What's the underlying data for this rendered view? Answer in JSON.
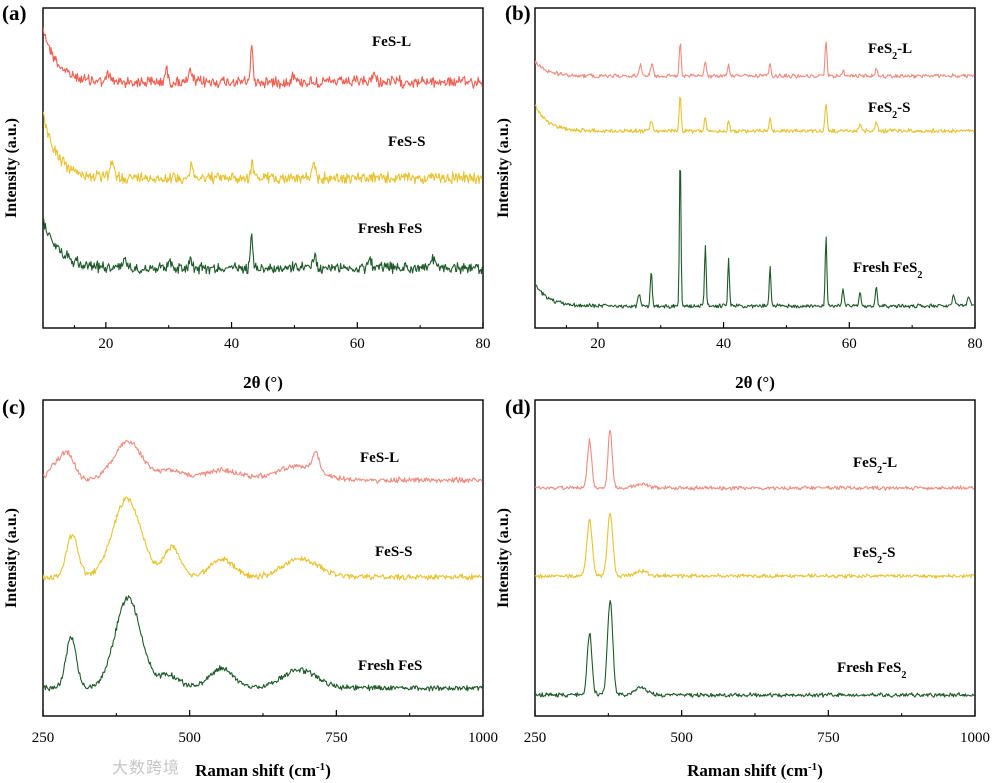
{
  "watermark": "大数跨境",
  "chart_data": [
    {
      "panel": "(a)",
      "type": "line",
      "xlabel": "2θ (°)",
      "ylabel": "Intensity (a.u.)",
      "xlim": [
        10,
        80
      ],
      "xticks": [
        20,
        40,
        60,
        80
      ],
      "noise": 4.5,
      "series": [
        {
          "name": "FeS-L",
          "color": "#f05e50",
          "base": 82,
          "edge": {
            "height": 55,
            "decay": 2.2
          },
          "peaks": [
            [
              20.5,
              7,
              0.3
            ],
            [
              29.6,
              12,
              0.25
            ],
            [
              33.5,
              10,
              0.25
            ],
            [
              43.2,
              38,
              0.18
            ],
            [
              49.8,
              8,
              0.25
            ],
            [
              62.6,
              8,
              0.3
            ]
          ]
        },
        {
          "name": "FeS-S",
          "color": "#e8c232",
          "base": 178,
          "edge": {
            "height": 65,
            "decay": 2.2
          },
          "peaks": [
            [
              21,
              12,
              0.4
            ],
            [
              33.6,
              10,
              0.3
            ],
            [
              43.3,
              16,
              0.2
            ],
            [
              53.1,
              12,
              0.25
            ]
          ]
        },
        {
          "name": "Fresh FeS",
          "color": "#1f5a2a",
          "base": 268,
          "edge": {
            "height": 48,
            "decay": 2.6
          },
          "peaks": [
            [
              23,
              9,
              0.3
            ],
            [
              30.1,
              8,
              0.3
            ],
            [
              33.5,
              9,
              0.3
            ],
            [
              43.2,
              38,
              0.18
            ],
            [
              53.2,
              12,
              0.25
            ],
            [
              62,
              9,
              0.3
            ],
            [
              72,
              9,
              0.3
            ]
          ]
        }
      ]
    },
    {
      "panel": "(b)",
      "type": "line",
      "xlabel": "2θ (°)",
      "ylabel": "Intensity (a.u.)",
      "xlim": [
        10,
        80
      ],
      "xticks": [
        20,
        40,
        60,
        80
      ],
      "noise": 1.6,
      "series": [
        {
          "name": "FeS2-L",
          "label_base": "FeS",
          "label_sub": "2",
          "label_suffix": "-L",
          "color": "#ef8c80",
          "base": 76,
          "edge": {
            "height": 14,
            "decay": 2.0
          },
          "peaks": [
            [
              26.8,
              12,
              0.2
            ],
            [
              28.6,
              13,
              0.2
            ],
            [
              33.1,
              34,
              0.15
            ],
            [
              37.1,
              16,
              0.15
            ],
            [
              40.8,
              12,
              0.15
            ],
            [
              47.4,
              12,
              0.15
            ],
            [
              56.3,
              34,
              0.15
            ],
            [
              59,
              5,
              0.2
            ],
            [
              64.3,
              6,
              0.2
            ]
          ]
        },
        {
          "name": "FeS2-S",
          "label_base": "FeS",
          "label_sub": "2",
          "label_suffix": "-S",
          "color": "#e8c232",
          "base": 131,
          "edge": {
            "height": 26,
            "decay": 2.0
          },
          "peaks": [
            [
              28.5,
              10,
              0.2
            ],
            [
              33.1,
              36,
              0.15
            ],
            [
              37.1,
              14,
              0.15
            ],
            [
              40.8,
              10,
              0.15
            ],
            [
              47.4,
              13,
              0.15
            ],
            [
              56.3,
              28,
              0.15
            ],
            [
              61.7,
              7,
              0.2
            ],
            [
              64.3,
              10,
              0.2
            ]
          ]
        },
        {
          "name": "Fresh FeS2",
          "label_base": "Fresh FeS",
          "label_sub": "2",
          "label_suffix": "",
          "color": "#1f5a2a",
          "base": 306,
          "edge": {
            "height": 22,
            "decay": 2.0
          },
          "peaks": [
            [
              26.6,
              12,
              0.2
            ],
            [
              28.5,
              34,
              0.15
            ],
            [
              33.1,
              154,
              0.12
            ],
            [
              37.1,
              62,
              0.13
            ],
            [
              40.8,
              46,
              0.13
            ],
            [
              47.4,
              40,
              0.13
            ],
            [
              56.3,
              70,
              0.13
            ],
            [
              59,
              18,
              0.15
            ],
            [
              61.7,
              14,
              0.15
            ],
            [
              64.3,
              20,
              0.15
            ],
            [
              76.6,
              10,
              0.2
            ],
            [
              79,
              10,
              0.2
            ]
          ]
        }
      ]
    },
    {
      "panel": "(c)",
      "type": "line",
      "xlabel": "Raman shift (cm⁻¹)",
      "xlabel_base": "Raman shift (cm",
      "xlabel_sup": "-1",
      "xlabel_end": ")",
      "ylabel": "Intensity (a.u.)",
      "xlim": [
        250,
        1000
      ],
      "xticks": [
        250,
        500,
        750,
        1000
      ],
      "noise": 2.2,
      "series": [
        {
          "name": "FeS-L",
          "color": "#ef8c80",
          "base": 480,
          "peaks": [
            [
              270,
              12,
              12
            ],
            [
              292,
              25,
              12
            ],
            [
              395,
              38,
              24
            ],
            [
              470,
              10,
              20
            ],
            [
              555,
              10,
              30
            ],
            [
              685,
              14,
              35
            ],
            [
              715,
              18,
              6
            ]
          ]
        },
        {
          "name": "FeS-S",
          "color": "#e8c232",
          "base": 577,
          "peaks": [
            [
              300,
              42,
              10
            ],
            [
              393,
              78,
              24
            ],
            [
              470,
              30,
              14
            ],
            [
              555,
              18,
              20
            ],
            [
              690,
              18,
              30
            ]
          ]
        },
        {
          "name": "Fresh FeS",
          "color": "#1f5a2a",
          "base": 688,
          "peaks": [
            [
              298,
              50,
              9
            ],
            [
              395,
              90,
              22
            ],
            [
              465,
              12,
              18
            ],
            [
              555,
              20,
              20
            ],
            [
              688,
              18,
              30
            ]
          ]
        }
      ]
    },
    {
      "panel": "(d)",
      "type": "line",
      "xlabel": "Raman shift (cm⁻¹)",
      "xlabel_base": "Raman shift (cm",
      "xlabel_sup": "-1",
      "xlabel_end": ")",
      "ylabel": "Intensity (a.u.)",
      "xlim": [
        250,
        1000
      ],
      "xticks": [
        250,
        500,
        750,
        1000
      ],
      "noise": 1.6,
      "series": [
        {
          "name": "FeS2-L",
          "label_base": "FeS",
          "label_sub": "2",
          "label_suffix": "-L",
          "color": "#ef8c80",
          "base": 488,
          "peaks": [
            [
              343,
              48,
              3.5
            ],
            [
              378,
              58,
              3.5
            ],
            [
              430,
              4,
              10
            ]
          ]
        },
        {
          "name": "FeS2-S",
          "label_base": "FeS",
          "label_sub": "2",
          "label_suffix": "-S",
          "color": "#e8c232",
          "base": 576,
          "peaks": [
            [
              343,
              56,
              4.5
            ],
            [
              378,
              62,
              4.5
            ],
            [
              430,
              5,
              10
            ]
          ]
        },
        {
          "name": "Fresh FeS2",
          "label_base": "Fresh FeS",
          "label_sub": "2",
          "label_suffix": "",
          "color": "#1f5a2a",
          "base": 695,
          "peaks": [
            [
              343,
              62,
              4
            ],
            [
              378,
              94,
              4.5
            ],
            [
              430,
              8,
              10
            ]
          ]
        }
      ]
    }
  ]
}
